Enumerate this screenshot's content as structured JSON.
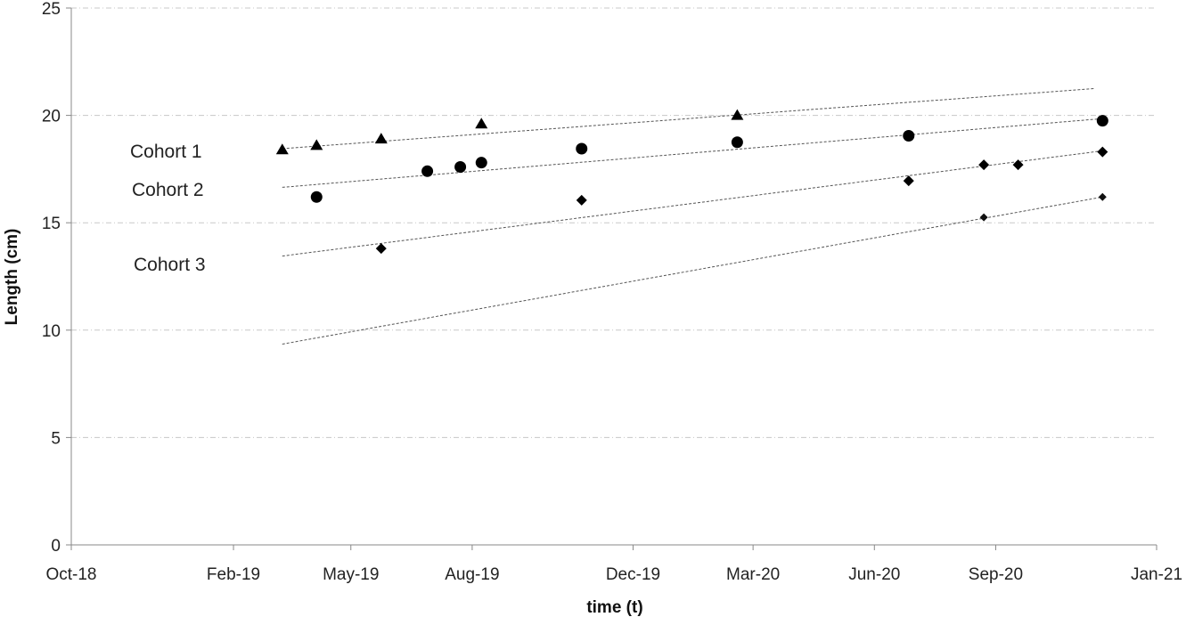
{
  "chart_data": {
    "type": "scatter",
    "title": "",
    "xlabel": "time (t)",
    "ylabel": "Length (cm)",
    "xlim": [
      "2018-10-01",
      "2021-01-01"
    ],
    "ylim": [
      0,
      25
    ],
    "x_ticks": [
      {
        "date": "2018-10-01",
        "label": "Oct-18"
      },
      {
        "date": "2019-02-01",
        "label": "Feb-19"
      },
      {
        "date": "2019-05-01",
        "label": "May-19"
      },
      {
        "date": "2019-08-01",
        "label": "Aug-19"
      },
      {
        "date": "2019-12-01",
        "label": "Dec-19"
      },
      {
        "date": "2020-03-01",
        "label": "Mar-20"
      },
      {
        "date": "2020-06-01",
        "label": "Jun-20"
      },
      {
        "date": "2020-09-01",
        "label": "Sep-20"
      },
      {
        "date": "2021-01-01",
        "label": "Jan-21"
      }
    ],
    "y_ticks": [
      0,
      5,
      10,
      15,
      20,
      25
    ],
    "grid": "horizontal dash-dot",
    "series": [
      {
        "name": "Cohort 1",
        "marker": "triangle",
        "points": [
          {
            "x": "2019-03-10",
            "y": 18.4
          },
          {
            "x": "2019-04-05",
            "y": 18.6
          },
          {
            "x": "2019-05-24",
            "y": 18.9
          },
          {
            "x": "2019-08-08",
            "y": 19.6
          },
          {
            "x": "2020-02-18",
            "y": 20.0
          }
        ],
        "trend": {
          "x": [
            "2019-03-10",
            "2020-11-15"
          ],
          "y": [
            18.45,
            21.25
          ]
        }
      },
      {
        "name": "Cohort 2",
        "marker": "circle",
        "points": [
          {
            "x": "2019-04-05",
            "y": 16.2
          },
          {
            "x": "2019-06-28",
            "y": 17.4
          },
          {
            "x": "2019-07-23",
            "y": 17.6
          },
          {
            "x": "2019-08-08",
            "y": 17.8
          },
          {
            "x": "2019-10-23",
            "y": 18.45
          },
          {
            "x": "2020-02-18",
            "y": 18.75
          },
          {
            "x": "2020-06-27",
            "y": 19.05
          },
          {
            "x": "2020-11-21",
            "y": 19.75
          }
        ],
        "trend": {
          "x": [
            "2019-03-10",
            "2020-11-21"
          ],
          "y": [
            16.65,
            19.85
          ]
        }
      },
      {
        "name": "Cohort 3",
        "marker": "diamond",
        "points": [
          {
            "x": "2019-05-24",
            "y": 13.8
          },
          {
            "x": "2019-10-23",
            "y": 16.05
          },
          {
            "x": "2020-06-27",
            "y": 16.95
          },
          {
            "x": "2020-08-23",
            "y": 17.7
          },
          {
            "x": "2020-09-18",
            "y": 17.7
          },
          {
            "x": "2020-11-21",
            "y": 18.3
          }
        ],
        "trend": {
          "x": [
            "2019-03-10",
            "2020-11-21"
          ],
          "y": [
            13.45,
            18.35
          ]
        }
      },
      {
        "name": "",
        "marker": "small-diamond",
        "points": [
          {
            "x": "2020-08-23",
            "y": 15.25
          },
          {
            "x": "2020-11-21",
            "y": 16.2
          }
        ],
        "trend": {
          "x": [
            "2019-03-10",
            "2020-11-21"
          ],
          "y": [
            9.35,
            16.2
          ]
        }
      }
    ],
    "annotations": [
      {
        "text": "Cohort 1",
        "series": "Cohort 1"
      },
      {
        "text": "Cohort 2",
        "series": "Cohort 2"
      },
      {
        "text": "Cohort 3",
        "series": "Cohort 3"
      }
    ]
  }
}
